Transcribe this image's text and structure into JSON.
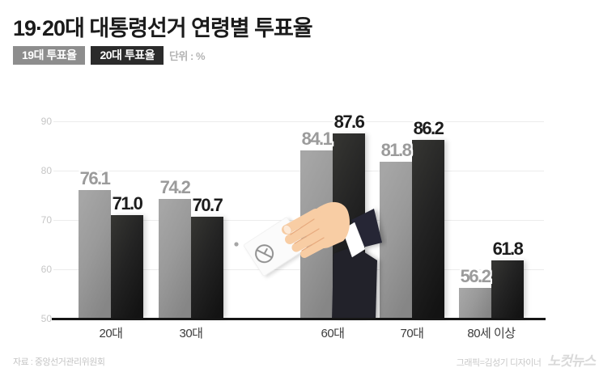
{
  "title": "19·20대 대통령선거 연령별 투표율",
  "legend": {
    "series1_label": "19대 투표율",
    "series2_label": "20대 투표율",
    "unit_label": "단위 : %"
  },
  "chart_data": {
    "type": "bar",
    "title": "19·20대 대통령선거 연령별 투표율",
    "categories": [
      "20대",
      "30대",
      "60대",
      "70대",
      "80세 이상"
    ],
    "series": [
      {
        "name": "19대 투표율",
        "color": "#9a9a9a",
        "values": [
          76.1,
          74.2,
          84.1,
          81.8,
          56.2
        ]
      },
      {
        "name": "20대 투표율",
        "color": "#1f1f1f",
        "values": [
          71.0,
          70.7,
          87.6,
          86.2,
          61.8
        ]
      }
    ],
    "unit": "%",
    "yticks": [
      50,
      60,
      70,
      80,
      90
    ],
    "ylim": [
      50,
      91
    ],
    "grid": true,
    "legend_position": "top-left",
    "annotation": "ballot-hand illustration between 30대 and 60대"
  },
  "footer": {
    "source": "자료 : 중앙선거관리위원회",
    "credit": "그래픽=김성기 디자이너",
    "logo": "노컷뉴스"
  }
}
